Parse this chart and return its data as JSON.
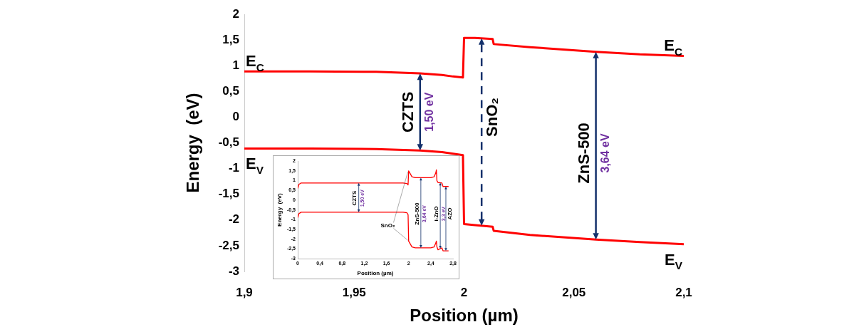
{
  "chart_data": [
    {
      "type": "line",
      "xlabel": "Position (µm)",
      "ylabel": "Energy  (eV)",
      "xlim": [
        1.9,
        2.1
      ],
      "xticks": [
        {
          "value": 1.9,
          "label": "1,9"
        },
        {
          "value": 1.95,
          "label": "1,95"
        },
        {
          "value": 2,
          "label": "2"
        },
        {
          "value": 2.05,
          "label": "2,05"
        },
        {
          "value": 2.1,
          "label": "2,1"
        }
      ],
      "ylim": [
        -3,
        2
      ],
      "yticks": [
        -3,
        {
          "value": -2.5,
          "label": "-2,5"
        },
        -2,
        {
          "value": -1.5,
          "label": "-1,5"
        },
        -1,
        {
          "value": -0.5,
          "label": "-0,5"
        },
        0,
        {
          "value": 0.5,
          "label": "0,5"
        },
        1,
        {
          "value": 1.5,
          "label": "1,5"
        },
        2
      ],
      "series": [
        {
          "name": "E$_{C}$",
          "color": "#ff0000",
          "x": [
            1.9,
            1.93,
            1.96,
            1.98,
            1.99,
            1.995,
            1.9995,
            2.0,
            2.005,
            2.013,
            2.0135,
            2.03,
            2.06,
            2.08,
            2.1
          ],
          "values": [
            0.89,
            0.89,
            0.88,
            0.85,
            0.82,
            0.79,
            0.77,
            1.54,
            1.54,
            1.52,
            1.42,
            1.36,
            1.27,
            1.22,
            1.19
          ]
        },
        {
          "name": "E$_{V}$",
          "color": "#ff0000",
          "x": [
            1.9,
            1.93,
            1.96,
            1.98,
            1.99,
            1.995,
            1.9995,
            2.0,
            2.005,
            2.013,
            2.0135,
            2.03,
            2.06,
            2.08,
            2.1
          ],
          "values": [
            -0.61,
            -0.61,
            -0.62,
            -0.65,
            -0.68,
            -0.71,
            -0.74,
            -2.08,
            -2.1,
            -2.13,
            -2.21,
            -2.29,
            -2.38,
            -2.43,
            -2.47
          ]
        }
      ],
      "annotations": [
        "CZTS",
        "1,50 eV",
        "SnO₂",
        "ZnS-500",
        "3,64 eV"
      ]
    },
    {
      "type": "line",
      "xlabel": "Position (µm)",
      "ylabel": "Energy  (eV)",
      "xlim": [
        0,
        2.8
      ],
      "xticks": [
        {
          "value": 0,
          "label": "0"
        },
        {
          "value": 0.4,
          "label": "0,4"
        },
        {
          "value": 0.8,
          "label": "0,8"
        },
        {
          "value": 1.2,
          "label": "1,2"
        },
        {
          "value": 1.6,
          "label": "1,6"
        },
        {
          "value": 2,
          "label": "2"
        },
        {
          "value": 2.4,
          "label": "2,4"
        },
        {
          "value": 2.8,
          "label": "2,8"
        }
      ],
      "ylim": [
        -3,
        2
      ],
      "yticks": [
        -3,
        {
          "value": -2.5,
          "label": "-2,5"
        },
        -2,
        {
          "value": -1.5,
          "label": "-1,5"
        },
        -1,
        {
          "value": -0.5,
          "label": "-0,5"
        },
        0,
        {
          "value": 0.5,
          "label": "0,5"
        },
        1,
        {
          "value": 1.5,
          "label": "1,5"
        },
        2
      ],
      "series": [
        {
          "color": "#ff0000",
          "x": [
            0,
            0.02,
            0.06,
            0.1,
            1.9,
            1.97,
            1.99,
            2.0,
            2.02,
            2.06,
            2.12,
            2.4,
            2.46,
            2.49,
            2.5,
            2.51,
            2.53,
            2.56,
            2.6,
            2.62,
            2.72
          ],
          "values": [
            0.6,
            0.8,
            0.88,
            0.88,
            0.88,
            0.85,
            0.78,
            1.5,
            1.4,
            1.2,
            1.15,
            1.15,
            1.2,
            1.4,
            1.55,
            1.0,
            0.9,
            0.9,
            0.88,
            0.7,
            0.7
          ]
        },
        {
          "color": "#ff0000",
          "x": [
            0,
            0.02,
            0.06,
            0.1,
            1.9,
            1.97,
            1.99,
            2.0,
            2.02,
            2.06,
            2.12,
            2.4,
            2.46,
            2.49,
            2.5,
            2.51,
            2.53,
            2.56,
            2.6,
            2.62,
            2.72
          ],
          "values": [
            -0.9,
            -0.7,
            -0.62,
            -0.62,
            -0.62,
            -0.65,
            -0.75,
            -2.1,
            -2.2,
            -2.4,
            -2.45,
            -2.45,
            -2.4,
            -2.2,
            -2.1,
            -2.4,
            -2.55,
            -2.5,
            -2.45,
            -2.6,
            -2.6
          ]
        }
      ],
      "annotations": [
        "CZTS",
        "1,50 eV",
        "ZnS-500",
        "3,64 eV",
        "i-ZnO",
        "3,3 eV",
        {
          "text": "SnO₂",
          "x": 2,
          "y": -2.1
        },
        "AZO"
      ]
    }
  ]
}
